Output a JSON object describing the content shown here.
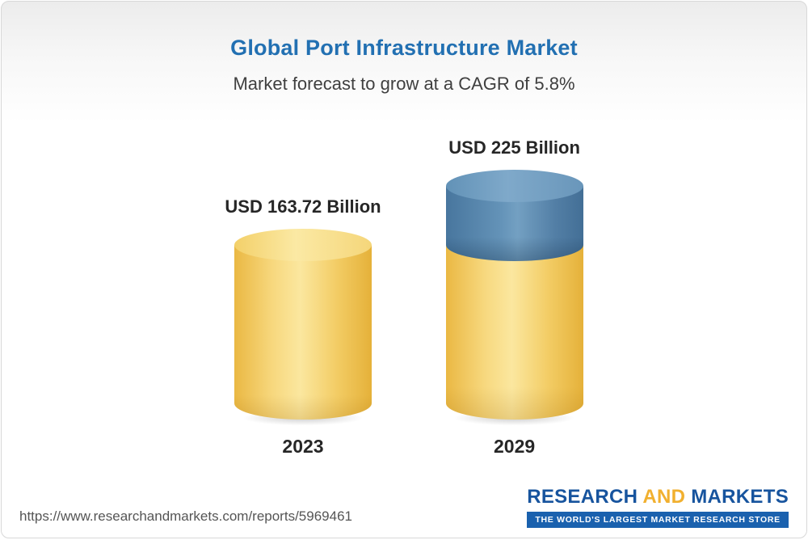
{
  "chart_data": {
    "type": "bar",
    "variant": "3d-cylinder",
    "title": "Global Port Infrastructure Market",
    "subtitle": "Market forecast to grow at a CAGR of 5.8%",
    "cagr": "5.8%",
    "unit": "USD Billion",
    "categories": [
      "2023",
      "2029"
    ],
    "values": [
      163.72,
      225
    ],
    "value_labels": [
      "USD 163.72 Billion",
      "USD 225 Billion"
    ],
    "ylim": [
      0,
      225
    ],
    "legend": "none",
    "grid": "off",
    "colors": {
      "base_segment": "#F5CE6B",
      "growth_segment": "#5C89AE",
      "title": "#2270B2",
      "text": "#262626"
    }
  },
  "footer": {
    "url": "https://www.researchandmarkets.com/reports/5969461",
    "logo": {
      "research": "RESEARCH",
      "and": "AND",
      "markets": "MARKETS",
      "tagline": "THE WORLD'S LARGEST MARKET RESEARCH STORE"
    }
  }
}
